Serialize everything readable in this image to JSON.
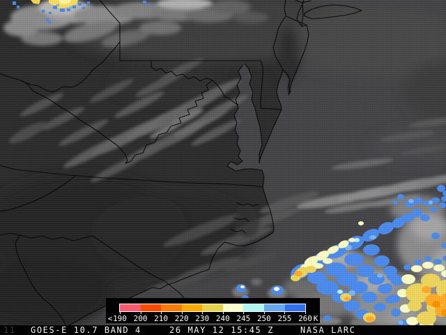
{
  "product": {
    "instrument_label": "GOES-E 10.7 BAND 4",
    "timestamp": "26 MAY 12 15:45 Z",
    "agency": "NASA LARC",
    "corner_faint_text": "11"
  },
  "colorbar": {
    "lt_symbol": "<",
    "unit": "K",
    "tick_labels": [
      "190",
      "200",
      "210",
      "220",
      "230",
      "240",
      "245",
      "250",
      "255",
      "260"
    ],
    "segment_colors": [
      "#fa5a6e",
      "#fb4a00",
      "#fb7c00",
      "#ffaa00",
      "#e8d24a",
      "#fcfcc8",
      "#b0f6f2",
      "#68a8f0",
      "#3070ee"
    ],
    "description": "brightness temperature scale, kelvin"
  }
}
